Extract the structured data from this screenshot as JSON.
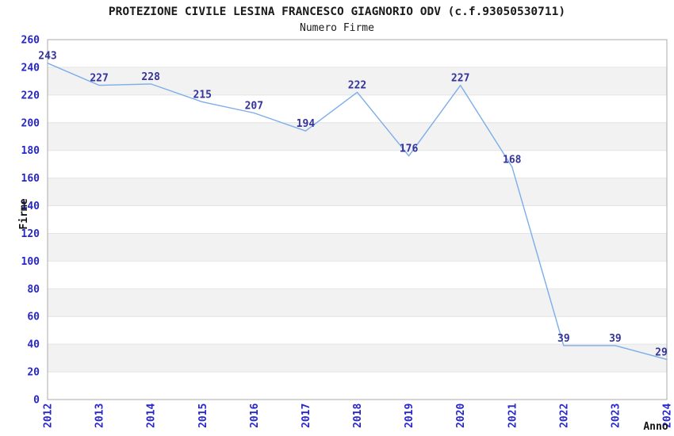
{
  "header": {
    "title": "PROTEZIONE CIVILE LESINA FRANCESCO GIAGNORIO ODV (c.f.93050530711)",
    "subtitle": "Numero Firme"
  },
  "chart_data": {
    "type": "line",
    "title": "PROTEZIONE CIVILE LESINA FRANCESCO GIAGNORIO ODV (c.f.93050530711)",
    "subtitle": "Numero Firme",
    "xlabel": "Anno",
    "ylabel": "Firme",
    "categories": [
      "2012",
      "2013",
      "2014",
      "2015",
      "2016",
      "2017",
      "2018",
      "2019",
      "2020",
      "2021",
      "2022",
      "2023",
      "2024"
    ],
    "values": [
      243,
      227,
      228,
      215,
      207,
      194,
      222,
      176,
      227,
      168,
      39,
      39,
      29
    ],
    "ylim": [
      0,
      260
    ],
    "ytick_step": 20,
    "grid": true,
    "alternating_bands": true,
    "legend": "none",
    "data_labels_visible": true,
    "colors": {
      "line": "#7badea",
      "tick_labels": "#2626cc",
      "data_labels": "#333399",
      "band": "#f2f2f2",
      "gridline": "#e4e4e4",
      "plot_border": "#ababab",
      "axis_title_text": "#111111"
    }
  }
}
